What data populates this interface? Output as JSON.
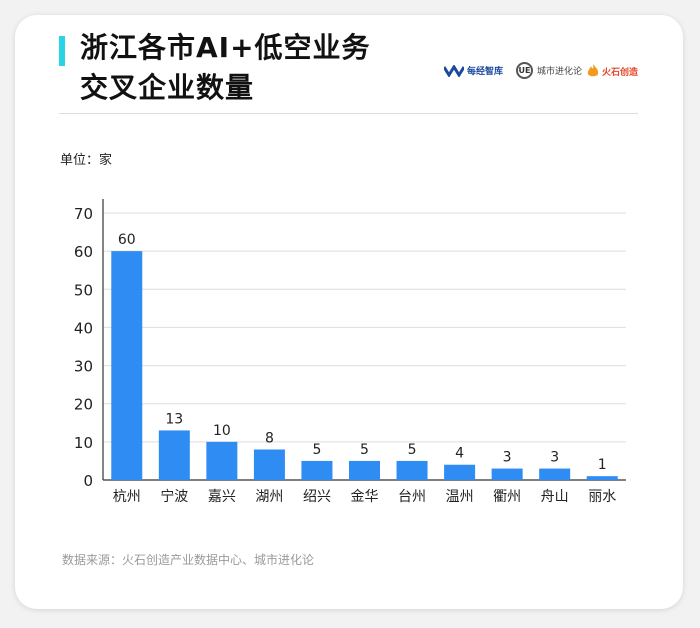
{
  "header": {
    "title_line1": "浙江各市AI+低空业务",
    "title_line2": "交叉企业数量",
    "logos": [
      {
        "name": "每经智库",
        "icon": "wave-logo-icon",
        "color": "#1b4aa0"
      },
      {
        "name": "城市进化论",
        "icon": "ue-logo-icon",
        "mark": "UE",
        "color": "#444444"
      },
      {
        "name": "火石创造",
        "icon": "flame-logo-icon",
        "color": "#e4482a"
      }
    ]
  },
  "unit_label": "单位：家",
  "source_note": "数据来源：火石创造产业数据中心、城市进化论",
  "colors": {
    "accent": "#2ad3e6",
    "bar": "#2f8cf2",
    "grid": "#dedede",
    "axis": "#333333"
  },
  "chart_data": {
    "type": "bar",
    "title": "",
    "xlabel": "",
    "ylabel": "",
    "categories": [
      "杭州",
      "宁波",
      "嘉兴",
      "湖州",
      "绍兴",
      "金华",
      "台州",
      "温州",
      "衢州",
      "舟山",
      "丽水"
    ],
    "values": [
      60,
      13,
      10,
      8,
      5,
      5,
      5,
      4,
      3,
      3,
      1
    ],
    "ylim": [
      0,
      70
    ],
    "yticks": [
      0,
      10,
      20,
      30,
      40,
      50,
      60,
      70
    ],
    "grid": true,
    "data_labels": true
  }
}
